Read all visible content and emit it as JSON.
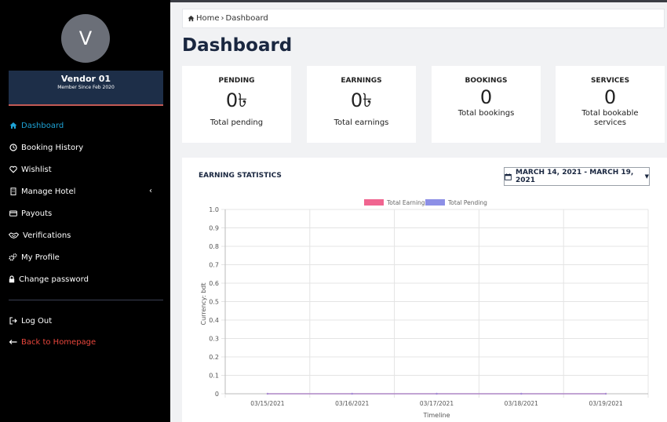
{
  "sidebar": {
    "avatar_letter": "V",
    "vendor_name": "Vendor 01",
    "member_since": "Member Since Feb 2020",
    "items": [
      {
        "label": "Dashboard",
        "icon": "home-icon"
      },
      {
        "label": "Booking History",
        "icon": "clock-icon"
      },
      {
        "label": "Wishlist",
        "icon": "heart-icon"
      },
      {
        "label": "Manage Hotel",
        "icon": "building-icon"
      },
      {
        "label": "Payouts",
        "icon": "credit-card-icon"
      },
      {
        "label": "Verifications",
        "icon": "handshake-icon"
      },
      {
        "label": "My Profile",
        "icon": "gears-icon"
      },
      {
        "label": "Change password",
        "icon": "lock-icon"
      },
      {
        "label": "Log Out",
        "icon": "sign-out-icon"
      },
      {
        "label": "Back to Homepage",
        "icon": "arrow-left-icon"
      }
    ],
    "active_color": "#1ea3d6",
    "back_color": "#e9463c"
  },
  "breadcrumb": {
    "home": "Home",
    "separator": "›",
    "current": "Dashboard"
  },
  "page_title": "Dashboard",
  "cards": [
    {
      "title": "PENDING",
      "value": "0৳",
      "subtitle": "Total pending"
    },
    {
      "title": "EARNINGS",
      "value": "0৳",
      "subtitle": "Total earnings"
    },
    {
      "title": "BOOKINGS",
      "value": "0",
      "subtitle": "Total bookings"
    },
    {
      "title": "SERVICES",
      "value": "0",
      "subtitle": "Total bookable services"
    }
  ],
  "earning_statistics": {
    "title": "EARNING STATISTICS",
    "date_range": "MARCH 14, 2021 - MARCH 19, 2021"
  },
  "chart_data": {
    "type": "line",
    "x": [
      "03/15/2021",
      "03/16/2021",
      "03/17/2021",
      "03/18/2021",
      "03/19/2021"
    ],
    "series": [
      {
        "name": "Total Earning",
        "color": "#f06590",
        "values": [
          0,
          0,
          0,
          0,
          0
        ]
      },
      {
        "name": "Total Pending",
        "color": "#8c8fe6",
        "values": [
          0,
          0,
          0,
          0,
          0
        ]
      }
    ],
    "yticks": [
      "0",
      "0.1",
      "0.2",
      "0.3",
      "0.4",
      "0.5",
      "0.6",
      "0.7",
      "0.8",
      "0.9",
      "1.0"
    ],
    "ylim": [
      0,
      1
    ],
    "xlabel": "Timeline",
    "ylabel": "Currency: bdt",
    "grid": true,
    "legend": "top-center"
  }
}
